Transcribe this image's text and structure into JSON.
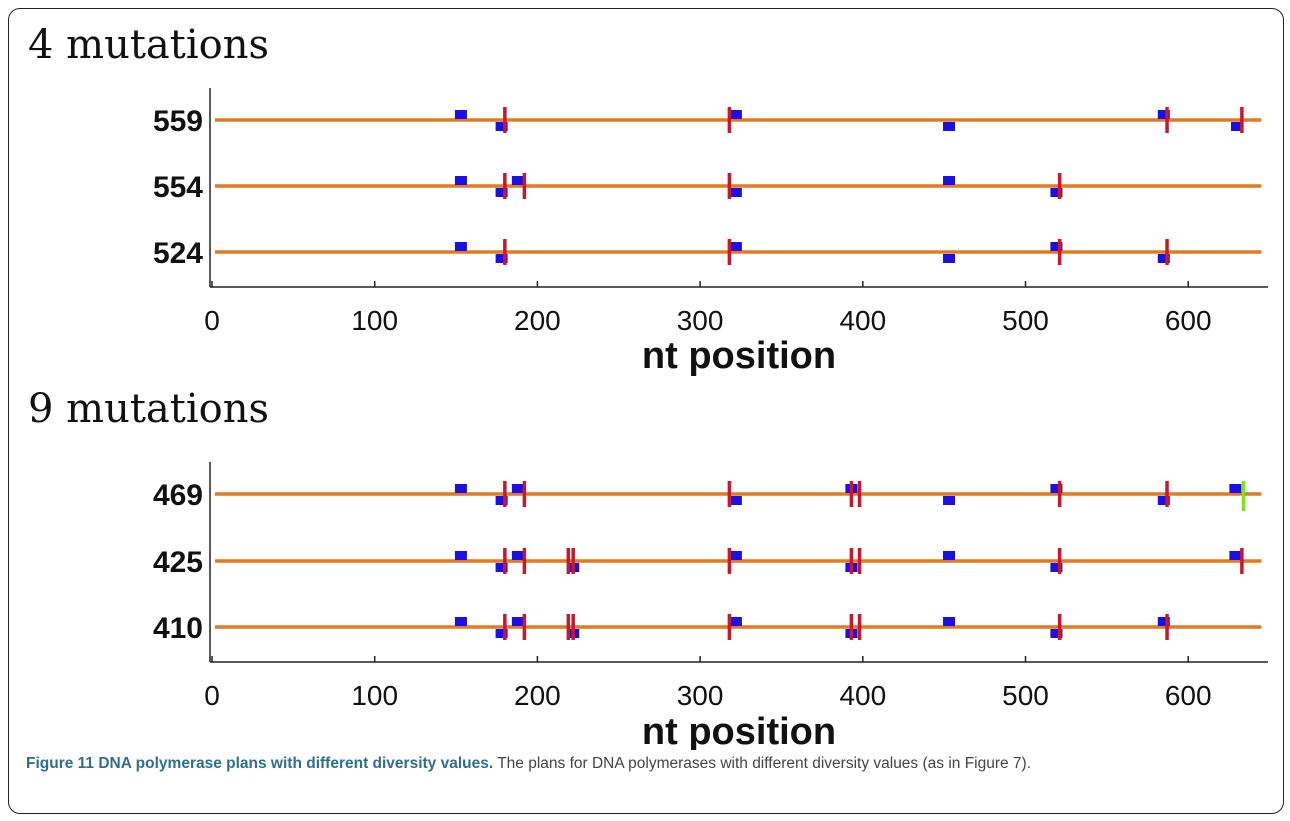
{
  "chart_data": [
    {
      "type": "scatter",
      "title": "4 mutations",
      "xlabel": "nt position",
      "ylabel": "",
      "xlim": [
        0,
        645
      ],
      "xticks": [
        0,
        100,
        200,
        300,
        400,
        500,
        600
      ],
      "grid": false,
      "colors": {
        "line": "#e07b22",
        "blue": "#1a10e6",
        "red": "#c8182c",
        "green": "#7be320"
      },
      "rows": [
        {
          "label": "559",
          "blue_upper": [
            153,
            322,
            585
          ],
          "blue_lower": [
            178,
            453,
            630
          ],
          "red": [
            180,
            318,
            587,
            633
          ],
          "green": []
        },
        {
          "label": "554",
          "blue_upper": [
            153,
            188,
            453
          ],
          "blue_lower": [
            178,
            322,
            519
          ],
          "red": [
            180,
            192,
            318,
            521
          ],
          "green": []
        },
        {
          "label": "524",
          "blue_upper": [
            153,
            322,
            519
          ],
          "blue_lower": [
            178,
            453,
            585
          ],
          "red": [
            180,
            318,
            521,
            587
          ],
          "green": []
        }
      ]
    },
    {
      "type": "scatter",
      "title": "9 mutations",
      "xlabel": "nt position",
      "ylabel": "",
      "xlim": [
        0,
        645
      ],
      "xticks": [
        0,
        100,
        200,
        300,
        400,
        500,
        600
      ],
      "grid": false,
      "colors": {
        "line": "#e07b22",
        "blue": "#1a10e6",
        "red": "#c8182c",
        "green": "#7be320"
      },
      "rows": [
        {
          "label": "469",
          "blue_upper": [
            153,
            188,
            393,
            519,
            629
          ],
          "blue_lower": [
            178,
            322,
            453,
            585
          ],
          "red": [
            180,
            192,
            318,
            393,
            398,
            521,
            587
          ],
          "green": [
            634
          ]
        },
        {
          "label": "425",
          "blue_upper": [
            153,
            188,
            322,
            453,
            629
          ],
          "blue_lower": [
            178,
            222,
            393,
            519
          ],
          "red": [
            180,
            192,
            219,
            222,
            318,
            393,
            398,
            521,
            633
          ],
          "green": []
        },
        {
          "label": "410",
          "blue_upper": [
            153,
            188,
            322,
            453,
            585
          ],
          "blue_lower": [
            178,
            222,
            393,
            519
          ],
          "red": [
            180,
            192,
            219,
            222,
            318,
            393,
            398,
            521,
            587
          ],
          "green": []
        }
      ]
    }
  ],
  "caption": {
    "title": "Figure 11 DNA polymerase plans with different diversity values.",
    "text": " The plans for DNA polymerases with different diversity values (as in Figure 7)."
  }
}
